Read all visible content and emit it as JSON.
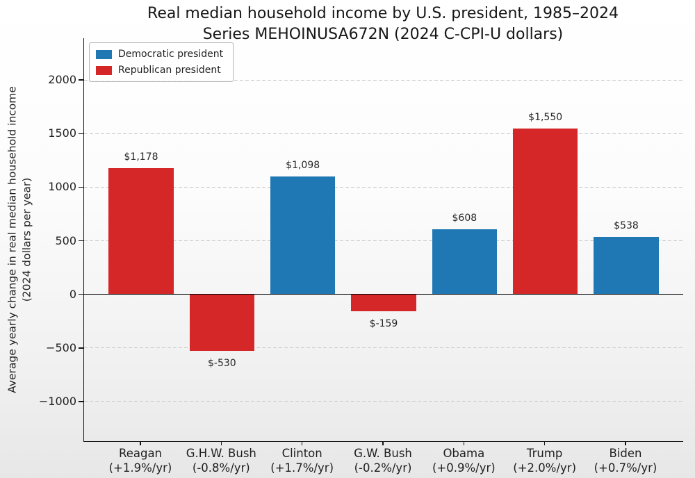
{
  "chart_data": {
    "type": "bar",
    "title": "Real median household income by U.S. president, 1985–2024",
    "subtitle": "Series MEHOINUSA672N (2024 C-CPI-U dollars)",
    "ylabel": "Average yearly change in real median household income\n(2024 dollars per year)",
    "categories": [
      "Reagan",
      "G.H.W. Bush",
      "Clinton",
      "G.W. Bush",
      "Obama",
      "Trump",
      "Biden"
    ],
    "category_sublabels": [
      "(+1.9%/yr)",
      "(-0.8%/yr)",
      "(+1.7%/yr)",
      "(-0.2%/yr)",
      "(+0.9%/yr)",
      "(+2.0%/yr)",
      "(+0.7%/yr)"
    ],
    "values": [
      1178,
      -530,
      1098,
      -159,
      608,
      1550,
      538
    ],
    "value_labels": [
      "$1,178",
      "$-530",
      "$1,098",
      "$-159",
      "$608",
      "$1,550",
      "$538"
    ],
    "parties": [
      "Republican",
      "Republican",
      "Democratic",
      "Republican",
      "Democratic",
      "Republican",
      "Democratic"
    ],
    "party_colors": {
      "Democratic": "#1f77b4",
      "Republican": "#d62728"
    },
    "legend_items": [
      {
        "label": "Democratic president",
        "party": "Democratic"
      },
      {
        "label": "Republican president",
        "party": "Republican"
      }
    ],
    "legend_position": "upper-left",
    "yticks": [
      2000,
      1500,
      1000,
      500,
      0,
      -500,
      -1000
    ],
    "ytick_labels": [
      "2000",
      "1500",
      "1000",
      "500",
      "0",
      "−500",
      "−1000"
    ],
    "ylim": [
      -1370,
      2390
    ],
    "bar_width_fraction": 0.8,
    "grid": "horizontal-dashed",
    "zero_line": true
  }
}
